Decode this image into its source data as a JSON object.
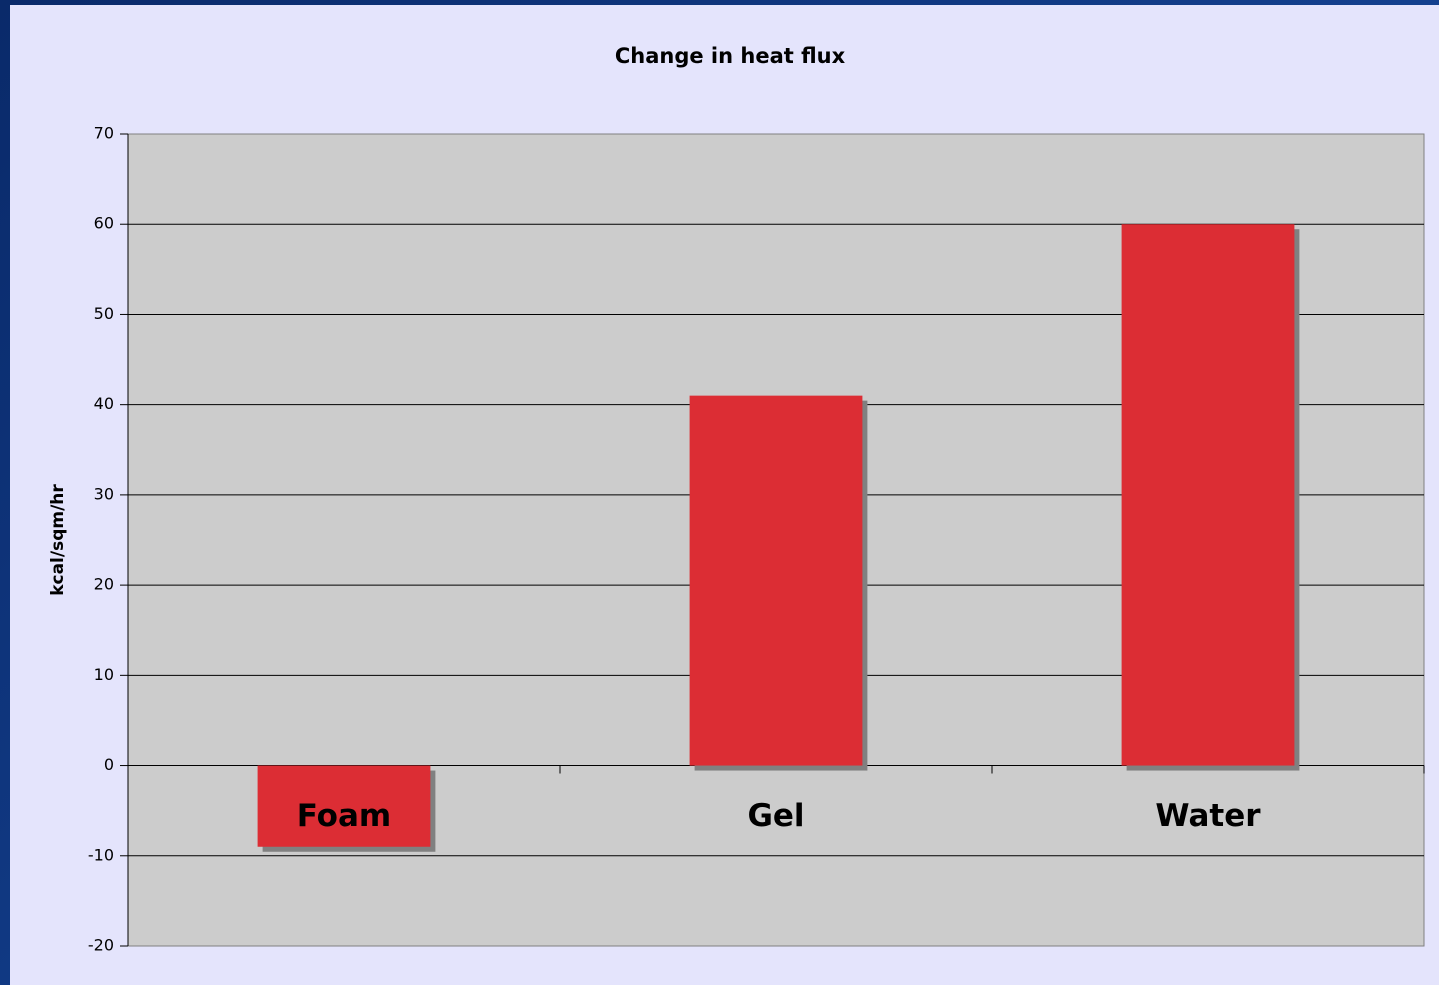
{
  "chart_data": {
    "type": "bar",
    "title": "Change in heat flux",
    "y_label": "kcal/sqm/hr",
    "categories": [
      "Foam",
      "Gel",
      "Water"
    ],
    "values": [
      -9,
      41,
      60
    ],
    "color": "#dc2d34",
    "ylim": [
      -20,
      70
    ],
    "yticks": [
      -20,
      -10,
      0,
      10,
      20,
      30,
      40,
      50,
      60,
      70
    ],
    "grid": true
  }
}
